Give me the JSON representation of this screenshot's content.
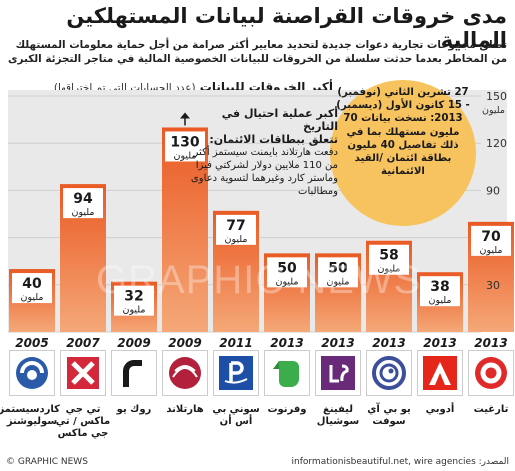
{
  "title": "مدى خروقات القراصنة لبيانات المستهلكين المالية",
  "intro": "تطلق مجموعات تجارية دعوات جديدة لتحديد معايير أكثر صرامة من أجل حماية معلومات المستهلك من المخاطر بعدما حدثت سلسلة من الخروقات للبيانات الخصوصية المالية في متاجر التجزئة الكبرى",
  "subtitle": "أكبر الخروقات للبيانات",
  "subtitle_note": "(عدد الحسابات التي تم اختراقها)",
  "annotation_tjx": {
    "head": "أكبر عملية احتيال في التاريخ",
    "head2": "تتعلق ببطاقات الائتمان:",
    "body": "دفعت هارتلاند بايمنت سيستمز أكثر من 110 ملايين دولار لشركتي فيزا وماستر كارد وغيرهما لتسوية دعاوى ومطالبات"
  },
  "callout": {
    "text": "27 تشرين الثاني (نوفمبر) - 15 كانون الأول (ديسمبر) 2013: نسخت بيانات 70 مليون مستهلك بما في ذلك تفاصيل 40 مليون بطاقة ائتمان /القيد الائتمانية"
  },
  "watermark": "GRAPHIC NEWS",
  "footer_left": "© GRAPHIC NEWS",
  "footer_right": "المصدر: informationisbeautiful.net, wire agencies",
  "colors": {
    "bar_top": "#ea5a24",
    "bar_bottom": "#f5a878",
    "callout": "#f7c35e",
    "grid": "#cfcfcf"
  },
  "chart_data": {
    "type": "bar",
    "categories": [
      "2005",
      "2007",
      "2009",
      "2009",
      "2011",
      "2013",
      "2013",
      "2013",
      "2013",
      "2013"
    ],
    "values": [
      40,
      94,
      32,
      130,
      77,
      50,
      50,
      58,
      38,
      70
    ],
    "value_labels": [
      "40",
      "94",
      "32",
      "130",
      "77",
      "50",
      "50",
      "58",
      "38",
      "70"
    ],
    "unit_label": "مليون",
    "ylim": [
      0,
      150
    ],
    "yticks": [
      0,
      30,
      60,
      90,
      120,
      150
    ],
    "yaxis_unit": "مليون",
    "grid": true
  },
  "companies": [
    {
      "name": "كاردسيستمز سوليوشنز",
      "icon": "cardsystems-logo-icon"
    },
    {
      "name": "تي جي ماكس / تي جي ماكس",
      "icon": "tjx-logo-icon"
    },
    {
      "name": "روك يو",
      "icon": "rockyou-logo-icon"
    },
    {
      "name": "هارتلاند",
      "icon": "heartland-logo-icon"
    },
    {
      "name": "سوني بي أس أن",
      "icon": "playstation-logo-icon"
    },
    {
      "name": "وفرنوت",
      "icon": "evernote-logo-icon"
    },
    {
      "name": "ليفينغ سوشيال",
      "icon": "livingsocial-logo-icon"
    },
    {
      "name": "يو بي آي سوفت",
      "icon": "ubisoft-logo-icon"
    },
    {
      "name": "أدوبي",
      "icon": "adobe-logo-icon"
    },
    {
      "name": "تارغيت",
      "icon": "target-logo-icon"
    }
  ]
}
